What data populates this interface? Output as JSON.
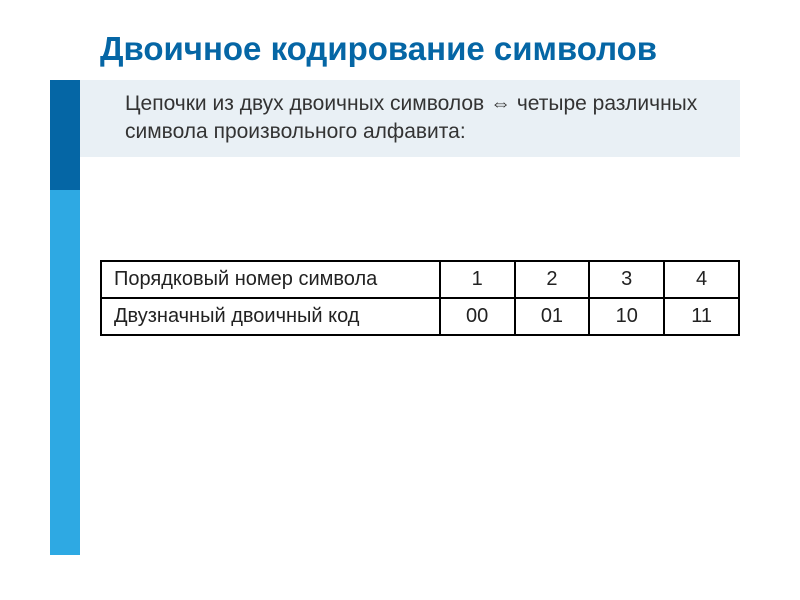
{
  "title": "Двоичное кодирование символов",
  "subtitle": "Цепочки из двух двоичных символов ⇔ четыре различных символа произвольного алфавита:",
  "colors": {
    "title_color": "#0566a5",
    "sidebar_dark": "#0566a5",
    "sidebar_light": "#2ea9e3",
    "subtitle_bg": "#e9f0f5",
    "text_color": "#333333",
    "border_color": "#000000",
    "background": "#ffffff"
  },
  "typography": {
    "title_fontsize": 33,
    "title_weight": "bold",
    "subtitle_fontsize": 21,
    "table_fontsize": 20,
    "font_family": "Arial"
  },
  "table": {
    "type": "table",
    "columns_count": 5,
    "label_col_width": 340,
    "value_col_width": 75,
    "rows": [
      {
        "label": "Порядковый номер символа",
        "values": [
          "1",
          "2",
          "3",
          "4"
        ]
      },
      {
        "label": "Двузначный двоичный код",
        "values": [
          "00",
          "01",
          "10",
          "11"
        ]
      }
    ]
  }
}
